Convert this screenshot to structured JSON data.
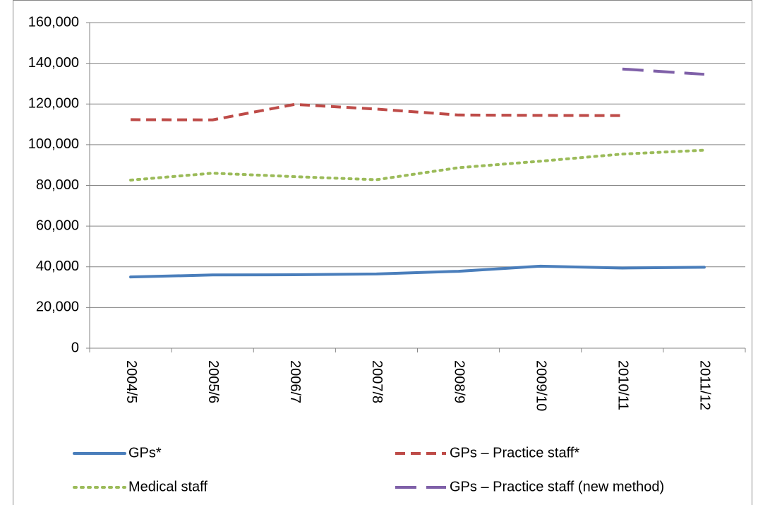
{
  "chart_data": {
    "type": "line",
    "categories": [
      "2004/5",
      "2005/6",
      "2006/7",
      "2007/8",
      "2008/9",
      "2009/10",
      "2010/11",
      "2011/12"
    ],
    "series": [
      {
        "name": "GPs*",
        "color": "#4a7ebb",
        "dash": "solid",
        "values": [
          35000,
          36000,
          36100,
          36500,
          37800,
          40300,
          39400,
          39800
        ]
      },
      {
        "name": "GPs – Practice staff*",
        "color": "#be4b48",
        "dash": "dashed",
        "values": [
          112300,
          112200,
          119800,
          117500,
          114600,
          114400,
          114300,
          null
        ]
      },
      {
        "name": "Medical staff",
        "color": "#9bbb59",
        "dash": "dotted",
        "values": [
          82600,
          86000,
          84300,
          82800,
          88700,
          91900,
          95400,
          97300
        ]
      },
      {
        "name": "GPs – Practice staff (new method)",
        "color": "#7f60a8",
        "dash": "long-dash",
        "values": [
          null,
          null,
          null,
          null,
          null,
          null,
          137200,
          134600
        ]
      }
    ],
    "ylim": [
      0,
      160000
    ],
    "yticks": [
      0,
      {
        "value": 20000,
        "label": "20,000"
      },
      {
        "value": 40000,
        "label": "40,000"
      },
      {
        "value": 60000,
        "label": "60,000"
      },
      {
        "value": 80000,
        "label": "80,000"
      },
      {
        "value": 100000,
        "label": "100,000"
      },
      {
        "value": 120000,
        "label": "120,000"
      },
      {
        "value": 140000,
        "label": "140,000"
      },
      {
        "value": 160000,
        "label": "160,000"
      }
    ],
    "grid": true,
    "legend": "bottom"
  }
}
